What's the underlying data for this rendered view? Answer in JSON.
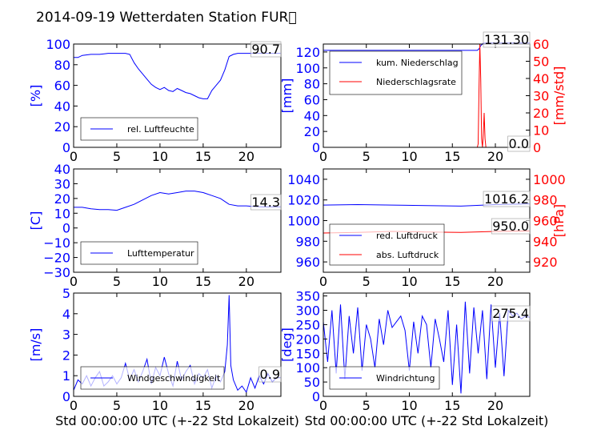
{
  "title": "2014-09-19 Wetterdaten Station FUR\u0000",
  "colors": {
    "primary": "#0000ff",
    "secondary": "#ff0000",
    "text": "#000000"
  },
  "chart_data": [
    {
      "type": "line",
      "panel": "top-left",
      "xlabel": "",
      "ylabel": "[%]",
      "xlim": [
        0,
        24
      ],
      "ylim": [
        0,
        100
      ],
      "xticks": [
        "0",
        "5",
        "10",
        "15",
        "20"
      ],
      "yticks": [
        "0",
        "20",
        "40",
        "60",
        "80",
        "100"
      ],
      "legend": "bottom-left",
      "annotation": "90.7",
      "series": [
        {
          "name": "rel. Luftfeuchte",
          "color": "#0000ff",
          "x": [
            0,
            0.5,
            1,
            2,
            3,
            4,
            5,
            5.5,
            6,
            6.5,
            7,
            7.5,
            8,
            8.5,
            9,
            9.5,
            10,
            10.5,
            11,
            11.5,
            12,
            12.5,
            13,
            13.5,
            14,
            14.5,
            15,
            15.5,
            16,
            16.5,
            17,
            17.5,
            18,
            18.5,
            19,
            20,
            21,
            22,
            23,
            24
          ],
          "y": [
            87,
            87,
            89,
            90,
            90,
            91,
            91,
            91,
            91,
            90,
            82,
            76,
            71,
            66,
            61,
            58,
            56,
            58,
            55,
            54,
            57,
            55,
            53,
            52,
            50,
            48,
            47,
            47,
            55,
            60,
            65,
            75,
            88,
            90,
            91,
            91,
            91,
            91,
            91,
            91
          ]
        }
      ]
    },
    {
      "type": "line",
      "panel": "top-right",
      "xlabel": "",
      "ylabel": "[mm]",
      "ylabel2": "[mm/std]",
      "xlim": [
        0,
        24
      ],
      "ylim": [
        0,
        130
      ],
      "ylim2": [
        0,
        60
      ],
      "xticks": [
        "0",
        "5",
        "10",
        "15",
        "20"
      ],
      "yticks": [
        "0",
        "20",
        "40",
        "60",
        "80",
        "100",
        "120"
      ],
      "yticks2": [
        "0",
        "10",
        "20",
        "30",
        "40",
        "50",
        "60"
      ],
      "legend": "top-left",
      "annotation_top": "131.30",
      "annotation_bottom": "0.0",
      "series": [
        {
          "name": "kum. Niederschlag",
          "color": "#0000ff",
          "axis": "left",
          "x": [
            0,
            5,
            10,
            15,
            17.9,
            18.1,
            18.3,
            18.6,
            19,
            24
          ],
          "y": [
            122,
            122,
            122,
            122,
            122,
            124,
            128,
            131,
            131.3,
            131.3
          ]
        },
        {
          "name": "Niederschlagsrate",
          "color": "#ff0000",
          "axis": "right",
          "x": [
            0,
            17.9,
            18.0,
            18.1,
            18.2,
            18.3,
            18.4,
            18.5,
            18.6,
            18.7,
            18.8,
            18.9,
            19.0,
            24
          ],
          "y": [
            0,
            0,
            2,
            35,
            60,
            40,
            5,
            0,
            8,
            20,
            5,
            0,
            0,
            0
          ]
        }
      ]
    },
    {
      "type": "line",
      "panel": "middle-left",
      "xlabel": "",
      "ylabel": "[C]",
      "xlim": [
        0,
        24
      ],
      "ylim": [
        -30,
        40
      ],
      "xticks": [
        "0",
        "5",
        "10",
        "15",
        "20"
      ],
      "yticks": [
        "−30",
        "−20",
        "−10",
        "0",
        "10",
        "20",
        "30",
        "40"
      ],
      "legend": "bottom-left",
      "annotation": "14.3",
      "series": [
        {
          "name": "Lufttemperatur",
          "color": "#0000ff",
          "x": [
            0,
            1,
            2,
            3,
            4,
            5,
            6,
            7,
            8,
            9,
            10,
            11,
            12,
            13,
            14,
            15,
            16,
            17,
            18,
            19,
            20,
            21,
            22,
            23,
            24
          ],
          "y": [
            14,
            14,
            13,
            12.5,
            12.5,
            12,
            14,
            16,
            19,
            22,
            24,
            23,
            24,
            25,
            25,
            24,
            22,
            20,
            16,
            15,
            15,
            14.5,
            14.3,
            14.3,
            14.3
          ]
        }
      ]
    },
    {
      "type": "line",
      "panel": "middle-right",
      "xlabel": "",
      "ylabel": "",
      "ylabel2": "[hPa]",
      "xlim": [
        0,
        24
      ],
      "ylim": [
        950,
        1050
      ],
      "ylim2": [
        910,
        1010
      ],
      "xticks": [
        "0",
        "5",
        "10",
        "15",
        "20"
      ],
      "yticks": [
        "960",
        "980",
        "1000",
        "1020",
        "1040"
      ],
      "yticks2": [
        "920",
        "940",
        "960",
        "980",
        "1000"
      ],
      "legend": "bottom-left",
      "annotation_top": "1016.2",
      "annotation_bottom": "950.0",
      "series": [
        {
          "name": "red. Luftdruck",
          "color": "#0000ff",
          "axis": "left",
          "x": [
            0,
            4,
            8,
            12,
            16,
            20,
            24
          ],
          "y": [
            1015,
            1015.5,
            1015,
            1014.5,
            1014,
            1015.5,
            1016.2
          ]
        },
        {
          "name": "abs. Luftdruck",
          "color": "#ff0000",
          "axis": "right",
          "x": [
            0,
            4,
            8,
            12,
            16,
            20,
            24
          ],
          "y": [
            948,
            948.5,
            949.5,
            949,
            948.5,
            949.5,
            950
          ]
        }
      ]
    },
    {
      "type": "line",
      "panel": "bottom-left",
      "xlabel": "Std 00:00:00 UTC (+-22 Std Lokalzeit)",
      "ylabel": "[m/s]",
      "xlim": [
        0,
        24
      ],
      "ylim": [
        0,
        5
      ],
      "xticks": [
        "0",
        "5",
        "10",
        "15",
        "20"
      ],
      "yticks": [
        "0",
        "1",
        "2",
        "3",
        "4",
        "5"
      ],
      "legend": "bottom-left",
      "annotation": "0.9",
      "series": [
        {
          "name": "Windgeschwindigkeit",
          "color": "#0000ff",
          "x": [
            0,
            0.5,
            1,
            1.5,
            2,
            2.5,
            3,
            3.5,
            4,
            4.5,
            5,
            5.5,
            6,
            6.5,
            7,
            7.5,
            8,
            8.5,
            9,
            9.5,
            10,
            10.5,
            11,
            11.5,
            12,
            12.5,
            13,
            13.5,
            14,
            14.5,
            15,
            15.5,
            16,
            16.5,
            17,
            17.5,
            17.8,
            18,
            18.2,
            18.5,
            19,
            19.5,
            20,
            20.5,
            21,
            21.5,
            22,
            22.5,
            23,
            23.5,
            24
          ],
          "y": [
            0.3,
            0.8,
            0.6,
            1.0,
            0.5,
            0.9,
            1.2,
            0.5,
            0.7,
            1.0,
            0.6,
            0.9,
            1.6,
            0.8,
            1.3,
            0.7,
            1.2,
            1.8,
            0.6,
            1.4,
            1.0,
            1.9,
            1.1,
            0.5,
            1.7,
            0.8,
            1.2,
            1.5,
            0.6,
            1.1,
            0.9,
            1.3,
            0.4,
            1.0,
            0.7,
            1.2,
            2.5,
            4.9,
            1.5,
            0.8,
            0.3,
            0.5,
            0.2,
            0.9,
            0.4,
            1.0,
            0.6,
            1.1,
            0.7,
            0.9,
            0.9
          ]
        }
      ]
    },
    {
      "type": "line",
      "panel": "bottom-right",
      "xlabel": "Std 00:00:00 UTC (+-22 Std Lokalzeit)",
      "ylabel": "[deg]",
      "xlim": [
        0,
        24
      ],
      "ylim": [
        0,
        360
      ],
      "xticks": [
        "0",
        "5",
        "10",
        "15",
        "20"
      ],
      "yticks": [
        "0",
        "50",
        "100",
        "150",
        "200",
        "250",
        "300",
        "350"
      ],
      "legend": "bottom-left",
      "annotation": "275.4",
      "series": [
        {
          "name": "Windrichtung",
          "color": "#0000ff",
          "x": [
            0,
            0.5,
            1,
            1.5,
            2,
            2.5,
            3,
            3.5,
            4,
            4.5,
            5,
            5.5,
            6,
            6.5,
            7,
            7.5,
            8,
            8.5,
            9,
            9.5,
            10,
            10.5,
            11,
            11.5,
            12,
            12.5,
            13,
            13.5,
            14,
            14.5,
            15,
            15.5,
            16,
            16.5,
            17,
            17.5,
            18,
            18.5,
            19,
            19.5,
            20,
            20.5,
            21,
            21.5,
            22,
            22.5,
            23,
            23.5,
            24
          ],
          "y": [
            260,
            120,
            300,
            80,
            320,
            60,
            280,
            150,
            310,
            90,
            250,
            200,
            100,
            270,
            180,
            300,
            240,
            260,
            280,
            230,
            90,
            260,
            150,
            280,
            250,
            100,
            270,
            200,
            120,
            300,
            40,
            250,
            10,
            330,
            80,
            310,
            150,
            300,
            60,
            320,
            100,
            290,
            70,
            300,
            280,
            290,
            270,
            280,
            275
          ]
        }
      ]
    }
  ]
}
